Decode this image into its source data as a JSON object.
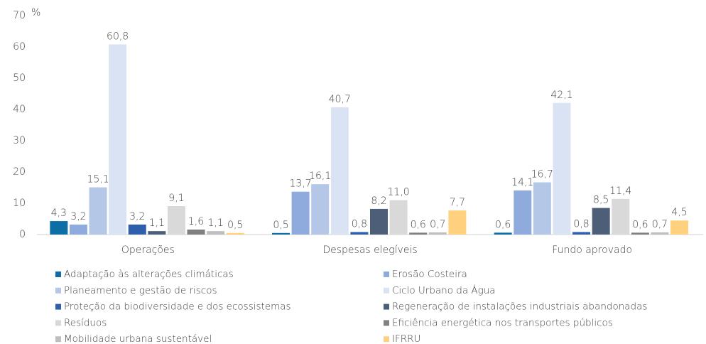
{
  "chart_data": {
    "type": "bar",
    "y_label": "%",
    "categories": [
      "Operações",
      "Despesas elegíveis",
      "Fundo aprovado"
    ],
    "ylim": [
      0,
      70
    ],
    "yticks": [
      0,
      10,
      20,
      30,
      40,
      50,
      60,
      70
    ],
    "grid": false,
    "legend": "bottom",
    "series": [
      {
        "name": "Adaptação às alterações climáticas",
        "color": "#0d6ea6",
        "values": [
          4.3,
          0.5,
          0.6
        ],
        "value_labels": [
          "4,3",
          "0,5",
          "0,6"
        ]
      },
      {
        "name": "Erosão Costeira",
        "color": "#8faadc",
        "values": [
          3.2,
          13.7,
          14.1
        ],
        "value_labels": [
          "3,2",
          "13,7",
          "14,1"
        ]
      },
      {
        "name": "Planeamento e gestão de riscos",
        "color": "#b4c7e7",
        "values": [
          15.1,
          16.1,
          16.7
        ],
        "value_labels": [
          "15,1",
          "16,1",
          "16,7"
        ]
      },
      {
        "name": "Ciclo Urbano da Água",
        "color": "#dae3f3",
        "values": [
          60.8,
          40.7,
          42.1
        ],
        "value_labels": [
          "60,8",
          "40,7",
          "42,1"
        ]
      },
      {
        "name": "Proteção da biodiversidade e dos ecossistemas",
        "color": "#2f5faa",
        "values": [
          3.2,
          0.8,
          0.8
        ],
        "value_labels": [
          "3,2",
          "0,8",
          "0,8"
        ]
      },
      {
        "name": "Regeneração de instalações industriais abandonadas",
        "color": "#4d5f78",
        "values": [
          1.1,
          8.2,
          8.5
        ],
        "value_labels": [
          "1,1",
          "8,2",
          "8,5"
        ]
      },
      {
        "name": "Resíduos",
        "color": "#d9d9d9",
        "values": [
          9.1,
          11.0,
          11.4
        ],
        "value_labels": [
          "9,1",
          "11,0",
          "11,4"
        ]
      },
      {
        "name": "Eficiência energética nos transportes públicos",
        "color": "#808080",
        "values": [
          1.6,
          0.6,
          0.6
        ],
        "value_labels": [
          "1,6",
          "0,6",
          "0,6"
        ]
      },
      {
        "name": "Mobilidade urbana sustentável",
        "color": "#bfbfbf",
        "values": [
          1.1,
          0.7,
          0.7
        ],
        "value_labels": [
          "1,1",
          "0,7",
          "0,7"
        ]
      },
      {
        "name": "IFRRU",
        "color": "#ffd17f",
        "values": [
          0.5,
          7.7,
          4.5
        ],
        "value_labels": [
          "0,5",
          "7,7",
          "4,5"
        ]
      }
    ]
  }
}
